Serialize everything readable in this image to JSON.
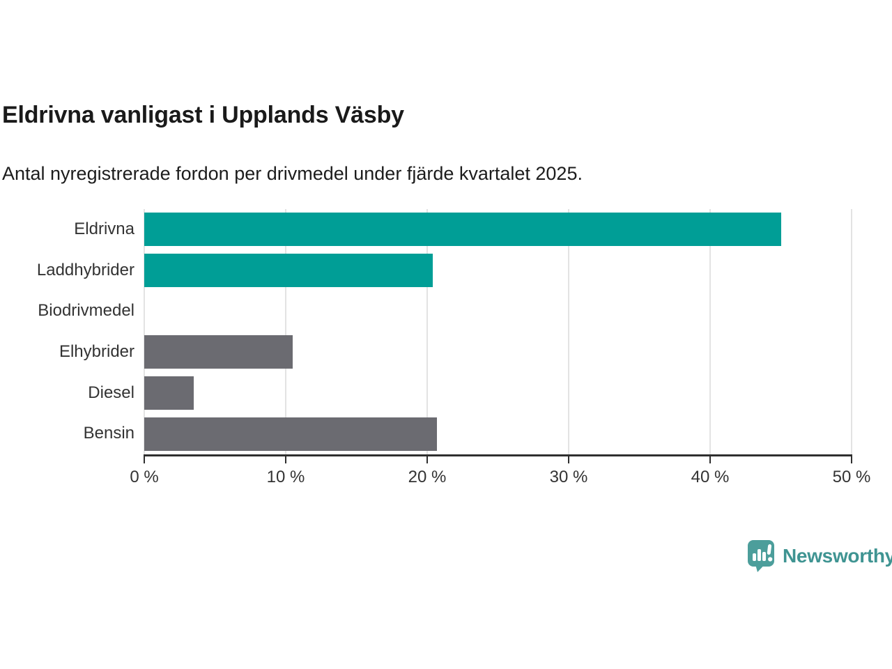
{
  "chart_data": {
    "type": "bar",
    "orientation": "horizontal",
    "title": "Eldrivna vanligast i Upplands Väsby",
    "subtitle": "Antal nyregistrerade fordon per drivmedel under fjärde kvartalet 2025.",
    "categories": [
      "Eldrivna",
      "Laddhybrider",
      "Biodrivmedel",
      "Elhybrider",
      "Diesel",
      "Bensin"
    ],
    "values": [
      45.0,
      20.4,
      0,
      10.5,
      3.5,
      20.7
    ],
    "unit": "%",
    "bar_colors": [
      "#009e96",
      "#009e96",
      "#6b6b71",
      "#6b6b71",
      "#6b6b71",
      "#6b6b71"
    ],
    "highlight_color": "#009e96",
    "default_color": "#6b6b71",
    "xlim": [
      0,
      50
    ],
    "x_ticks": [
      0,
      10,
      20,
      30,
      40,
      50
    ],
    "x_tick_labels": [
      "0 %",
      "10 %",
      "20 %",
      "30 %",
      "40 %",
      "50 %"
    ],
    "grid": "vertical-gridlines-on",
    "legend": "none"
  },
  "footer": {
    "brand": "Newsworthy",
    "brand_text_color": "#3f9492",
    "brand_icon": "newsworthy-speech-bubble-bar-chart-icon",
    "brand_icon_color": "#4c9e9b"
  },
  "colors": {
    "background": "#ffffff",
    "gridline": "#e3e3e3",
    "axis": "#2f2f2f",
    "tick_text": "#333333",
    "title_text": "#1a1a1a"
  }
}
